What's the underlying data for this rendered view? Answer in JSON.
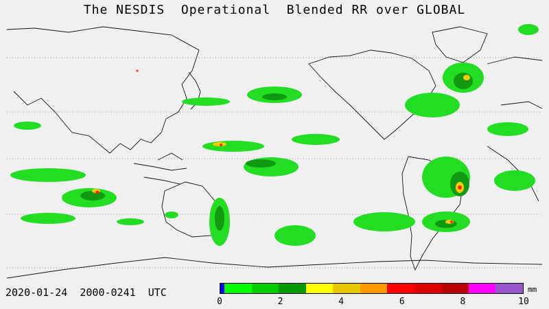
{
  "title": "The NESDIS  Operational  Blended RR over GLOBAL",
  "timestamp": "2020-01-24  2000-0241  UTC",
  "legend": {
    "unit": "mm",
    "ticks": [
      "0",
      "2",
      "4",
      "6",
      "8",
      "10"
    ],
    "colors": [
      "#0000ff",
      "#00ff00",
      "#00cc00",
      "#009900",
      "#ffff00",
      "#e6c800",
      "#ff9900",
      "#ff0000",
      "#dd0000",
      "#bb0000",
      "#ff00ff",
      "#9955cc"
    ]
  },
  "map": {
    "rain_colors": {
      "light": "#22dd22",
      "moderate": "#119911",
      "heavy": "#ffcc00",
      "intense": "#ff2200"
    }
  }
}
